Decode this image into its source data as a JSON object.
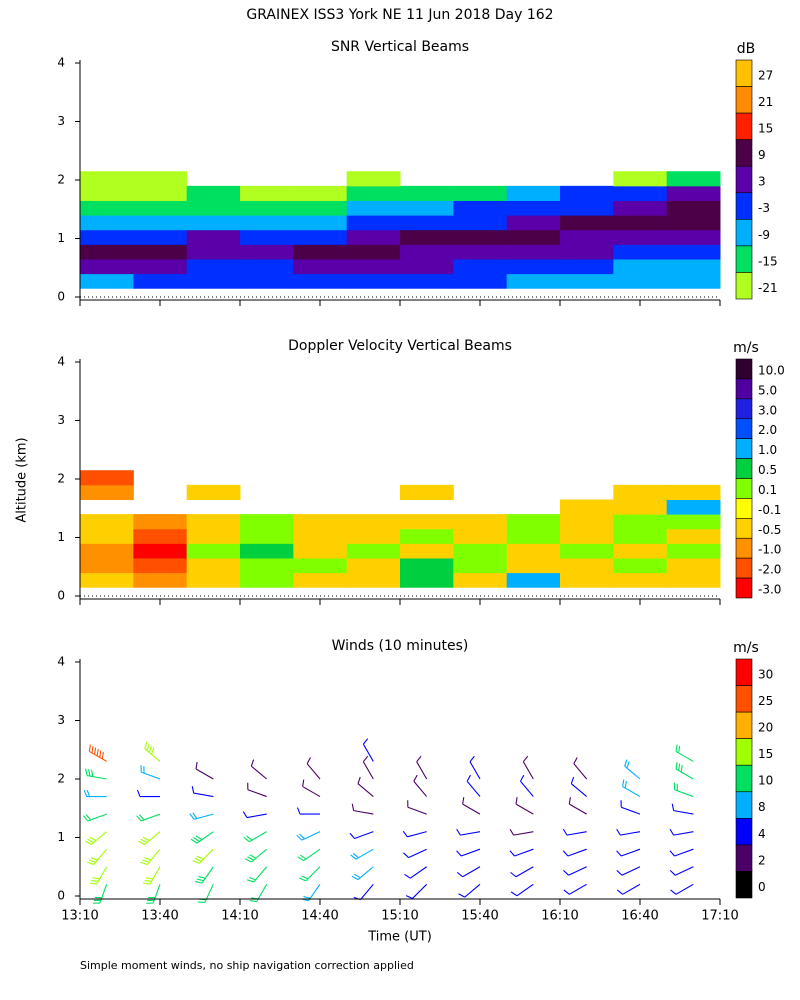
{
  "title": "GRAINEX ISS3 York NE  11 Jun 2018 Day 162",
  "y_label": "Altitude (km)",
  "x_label": "Time (UT)",
  "footnote": "Simple moment winds, no ship navigation correction applied",
  "time_labels": [
    "13:10",
    "13:40",
    "14:10",
    "14:40",
    "15:10",
    "15:40",
    "16:10",
    "16:40",
    "17:10"
  ],
  "chart_data": [
    {
      "type": "heatmap",
      "title": "SNR Vertical Beams",
      "unit": "dB",
      "ylim": [
        0,
        4
      ],
      "yticks": [
        0,
        1,
        2,
        3,
        4
      ],
      "altitude_bins": [
        0.15,
        0.4,
        0.65,
        0.9,
        1.15,
        1.4,
        1.65,
        1.9,
        2.15
      ],
      "colorbar": {
        "labels": [
          27,
          21,
          15,
          9,
          3,
          -3,
          -9,
          -15,
          -21
        ],
        "colors": [
          "#ffc000",
          "#ff8c00",
          "#ff2000",
          "#4b0048",
          "#5a00a8",
          "#0030ff",
          "#00b0ff",
          "#00e060",
          "#b0ff20"
        ]
      },
      "values": [
        [
          -9,
          -3,
          -3,
          -3,
          -3,
          -3,
          -3,
          -3,
          -9,
          -9,
          -9,
          -9
        ],
        [
          3,
          3,
          -3,
          -3,
          3,
          3,
          3,
          -3,
          -3,
          -3,
          -9,
          -9
        ],
        [
          9,
          9,
          3,
          3,
          9,
          9,
          3,
          3,
          3,
          3,
          -3,
          -3
        ],
        [
          -3,
          -3,
          3,
          -3,
          -3,
          3,
          9,
          9,
          9,
          3,
          3,
          3
        ],
        [
          -9,
          -9,
          -9,
          -9,
          -9,
          -3,
          -3,
          -3,
          3,
          9,
          9,
          9
        ],
        [
          -15,
          -15,
          -15,
          -15,
          -15,
          -9,
          -9,
          -3,
          -3,
          -3,
          3,
          9
        ],
        [
          -21,
          -21,
          -15,
          -21,
          -21,
          -15,
          -15,
          -15,
          -9,
          -3,
          -3,
          3
        ],
        [
          -21,
          -21,
          null,
          null,
          null,
          -21,
          null,
          null,
          null,
          null,
          -21,
          -15
        ]
      ]
    },
    {
      "type": "heatmap",
      "title": "Doppler Velocity Vertical Beams",
      "unit": "m/s",
      "ylim": [
        0,
        4
      ],
      "yticks": [
        0,
        1,
        2,
        3,
        4
      ],
      "altitude_bins": [
        0.15,
        0.4,
        0.65,
        0.9,
        1.15,
        1.4,
        1.65,
        1.9,
        2.15
      ],
      "colorbar": {
        "labels": [
          {
            "value": 10,
            "label": "10.0"
          },
          {
            "value": 5,
            "label": "5.0"
          },
          {
            "value": 3,
            "label": "3.0"
          },
          {
            "value": 2,
            "label": "2.0"
          },
          {
            "value": 1,
            "label": "1.0"
          },
          0.5,
          0.1,
          -0.1,
          -0.5,
          {
            "value": -1,
            "label": "-1.0"
          },
          {
            "value": -2,
            "label": "-2.0"
          },
          {
            "value": -3,
            "label": "-3.0"
          }
        ],
        "colors": [
          "#300030",
          "#5000a0",
          "#2020e0",
          "#0050ff",
          "#00b0ff",
          "#00d040",
          "#80ff00",
          "#ffff00",
          "#ffd000",
          "#ff9000",
          "#ff5000",
          "#ff0000"
        ]
      },
      "values": [
        [
          -0.5,
          -1,
          -0.5,
          0.1,
          -0.5,
          -0.5,
          0.5,
          -0.5,
          1,
          -0.5,
          -0.5,
          -0.5
        ],
        [
          -1,
          -2,
          -0.5,
          0.1,
          0.1,
          -0.5,
          0.5,
          0.1,
          -0.5,
          -0.5,
          0.1,
          -0.5
        ],
        [
          -1,
          -3,
          0.1,
          0.5,
          -0.5,
          0.1,
          -0.5,
          0.1,
          -0.5,
          0.1,
          -0.5,
          0.1
        ],
        [
          -0.5,
          -2,
          -0.5,
          0.1,
          -0.5,
          -0.5,
          0.1,
          -0.5,
          0.1,
          -0.5,
          0.1,
          -0.5
        ],
        [
          -0.5,
          -1,
          -0.5,
          0.1,
          -0.5,
          -0.5,
          -0.5,
          -0.5,
          0.1,
          -0.5,
          0.1,
          0.1
        ],
        [
          null,
          null,
          null,
          null,
          null,
          null,
          null,
          null,
          null,
          -0.5,
          -0.5,
          1
        ],
        [
          -1,
          null,
          -0.5,
          null,
          null,
          null,
          -0.5,
          null,
          null,
          null,
          -0.5,
          -0.5
        ],
        [
          -2,
          null,
          null,
          null,
          null,
          null,
          null,
          null,
          null,
          null,
          null,
          null
        ]
      ]
    },
    {
      "type": "barbs",
      "title": "Winds (10 minutes)",
      "unit": "m/s",
      "ylim": [
        0,
        4
      ],
      "yticks": [
        0,
        1,
        2,
        3,
        4
      ],
      "altitudes": [
        0.2,
        0.5,
        0.8,
        1.1,
        1.4,
        1.7,
        2.0,
        2.3
      ],
      "colorbar": {
        "labels": [
          30,
          25,
          20,
          15,
          10,
          8,
          4,
          2,
          0
        ],
        "colors": [
          "#ff0000",
          "#ff5000",
          "#ffb000",
          "#a0ff00",
          "#00e060",
          "#00b0ff",
          "#0000ff",
          "#4b0068",
          "#000000"
        ]
      },
      "speeds": [
        [
          14,
          14,
          12,
          10,
          9,
          7,
          6,
          5,
          4,
          4,
          4,
          4
        ],
        [
          16,
          16,
          14,
          12,
          10,
          8,
          6,
          5,
          4,
          4,
          4,
          4
        ],
        [
          16,
          16,
          15,
          13,
          10,
          8,
          5,
          4,
          4,
          4,
          4,
          4
        ],
        [
          15,
          15,
          14,
          12,
          8,
          5,
          4,
          4,
          3,
          4,
          4,
          4
        ],
        [
          12,
          10,
          8,
          6,
          4,
          3,
          3,
          3,
          3,
          3,
          4,
          6
        ],
        [
          8,
          6,
          4,
          3,
          3,
          2,
          3,
          4,
          4,
          4,
          8,
          12
        ],
        [
          14,
          8,
          3,
          3,
          3,
          3,
          3,
          4,
          3,
          3,
          8,
          14
        ],
        [
          28,
          18,
          null,
          null,
          null,
          4,
          null,
          null,
          null,
          null,
          null,
          12
        ]
      ],
      "directions": [
        [
          200,
          200,
          205,
          210,
          215,
          220,
          225,
          230,
          235,
          240,
          240,
          240
        ],
        [
          210,
          210,
          215,
          220,
          225,
          230,
          235,
          240,
          240,
          245,
          245,
          245
        ],
        [
          220,
          220,
          225,
          230,
          235,
          240,
          245,
          250,
          250,
          250,
          250,
          250
        ],
        [
          230,
          230,
          235,
          240,
          245,
          250,
          255,
          260,
          260,
          260,
          260,
          260
        ],
        [
          250,
          250,
          255,
          260,
          270,
          280,
          290,
          300,
          300,
          300,
          290,
          280
        ],
        [
          270,
          270,
          280,
          290,
          300,
          310,
          320,
          320,
          320,
          310,
          300,
          290
        ],
        [
          280,
          290,
          300,
          310,
          320,
          330,
          330,
          330,
          330,
          320,
          310,
          300
        ],
        [
          300,
          310,
          null,
          null,
          null,
          330,
          null,
          null,
          null,
          null,
          null,
          300
        ]
      ]
    }
  ]
}
